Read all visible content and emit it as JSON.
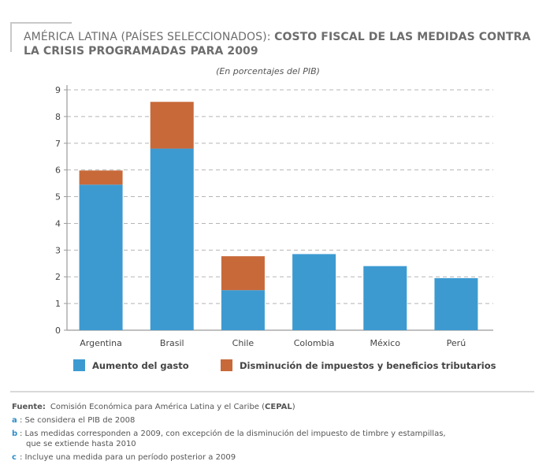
{
  "title": {
    "prefix": "AMÉRICA LATINA (PAÍSES SELECCIONADOS):",
    "main": "COSTO FISCAL DE LAS MEDIDAS CONTRA LA CRISIS PROGRAMADAS PARA 2009"
  },
  "subtitle": "(En porcentajes del PIB)",
  "colors": {
    "gasto": "#3d9ad1",
    "impuestos": "#c8693a",
    "grid": "#b5b5b5",
    "axis": "#9a9a9a"
  },
  "chart_data": {
    "type": "bar",
    "stacked": true,
    "categories": [
      "Argentina",
      "Brasil",
      "Chile",
      "Colombia",
      "México",
      "Perú"
    ],
    "series": [
      {
        "name": "Aumento del gasto",
        "values": [
          5.45,
          6.8,
          1.5,
          2.85,
          2.4,
          1.95
        ]
      },
      {
        "name": "Disminución de impuestos y beneficios tributarios",
        "values": [
          0.53,
          1.75,
          1.27,
          0,
          0,
          0
        ]
      }
    ],
    "ylim": [
      0,
      9
    ],
    "yticks": [
      "0",
      "1",
      "2",
      "3",
      "4",
      "5",
      "6",
      "7",
      "8",
      "9"
    ],
    "grid": true,
    "legend_position": "bottom"
  },
  "legend": {
    "gasto": "Aumento del gasto",
    "impuestos": "Disminución de impuestos y beneficios tributarios"
  },
  "notes": {
    "source_label": "Fuente",
    "source_text": "Comisión Económica para América Latina y el Caribe (",
    "source_abbr": "CEPAL",
    "source_close": ")",
    "a_letter": "a",
    "a_text": ": Se considera el PIB de 2008",
    "b_letter": "b",
    "b_text_1": ": Las medidas corresponden a 2009, con excepción de la disminución del impuesto de timbre y estampillas,",
    "b_text_2": "que se extiende hasta 2010",
    "c_letter": "c",
    "c_text": ": Incluye una medida para un período posterior a 2009"
  }
}
